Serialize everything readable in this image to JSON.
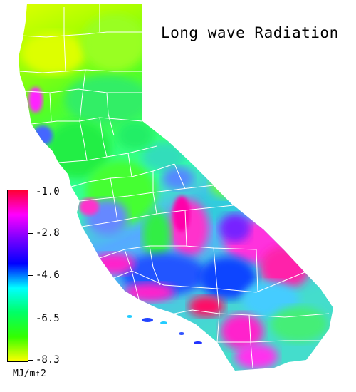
{
  "title": "Long wave Radiation",
  "colorbar": {
    "tick_labels": [
      "-1.0",
      "-2.8",
      "-4.6",
      "-6.5",
      "-8.3"
    ],
    "tick_values": [
      -1.0,
      -2.8,
      -4.6,
      -6.5,
      -8.3
    ],
    "min": -8.3,
    "max": -1.0,
    "units": "MJ/m↑2",
    "colors": [
      "#ff0033",
      "#ff00ff",
      "#7700ff",
      "#0000ff",
      "#00ffff",
      "#00ff66",
      "#33ff00",
      "#ffff00"
    ]
  },
  "map": {
    "region": "California",
    "background_color": "#ffffff",
    "county_line_color": "#ffffff"
  }
}
